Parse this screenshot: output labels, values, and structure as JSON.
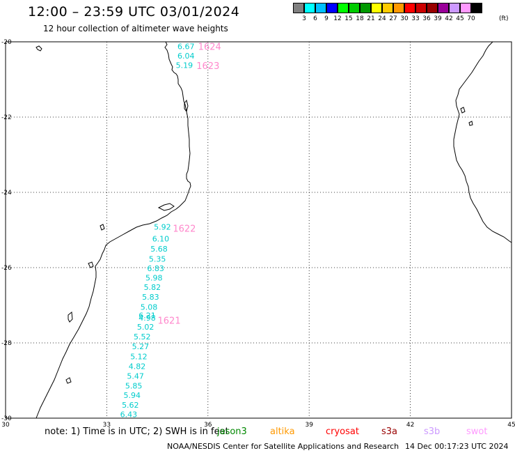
{
  "header": {
    "title": "12:00 – 23:59 UTC 03/01/2024",
    "subtitle": "12 hour collection of altimeter wave heights"
  },
  "legend": {
    "labels": [
      "3",
      "6",
      "9",
      "12",
      "15",
      "18",
      "21",
      "24",
      "27",
      "30",
      "33",
      "36",
      "39",
      "42",
      "45",
      "70"
    ],
    "unit": "(ft)",
    "colors": [
      "#808080",
      "#00ffff",
      "#00bfff",
      "#0000ff",
      "#00ff00",
      "#00cc00",
      "#009900",
      "#ffff00",
      "#ffcc00",
      "#ff9900",
      "#ff0000",
      "#cc0000",
      "#990000",
      "#990099",
      "#cc99ff",
      "#ff99ff",
      "#000000"
    ]
  },
  "map": {
    "lon_range": [
      30,
      45
    ],
    "lat_range": [
      -30,
      -20
    ],
    "lon_labels": [
      "30",
      "33",
      "36",
      "39",
      "42",
      "45"
    ],
    "lat_labels": [
      "-20",
      "-22",
      "-24",
      "-26",
      "-28",
      "-30"
    ],
    "grid": true,
    "track_color": "#00cccc",
    "pass_color": "#ff88cc",
    "wave_heights": [
      {
        "value": "6.67",
        "lon": 35.35,
        "lat": -20.12
      },
      {
        "value": "6.04",
        "lon": 35.35,
        "lat": -20.37
      },
      {
        "value": "5.19",
        "lon": 35.3,
        "lat": -20.62
      },
      {
        "value": "5.92",
        "lon": 34.65,
        "lat": -24.92
      },
      {
        "value": "6.10",
        "lon": 34.6,
        "lat": -25.23
      },
      {
        "value": "5.68",
        "lon": 34.55,
        "lat": -25.5
      },
      {
        "value": "5.35",
        "lon": 34.5,
        "lat": -25.77
      },
      {
        "value": "6.83",
        "lon": 34.45,
        "lat": -26.02
      },
      {
        "value": "5.98",
        "lon": 34.4,
        "lat": -26.27
      },
      {
        "value": "5.82",
        "lon": 34.35,
        "lat": -26.52
      },
      {
        "value": "5.83",
        "lon": 34.3,
        "lat": -26.78
      },
      {
        "value": "5.08",
        "lon": 34.25,
        "lat": -27.05
      },
      {
        "value": "6.21",
        "lon": 34.2,
        "lat": -27.27
      },
      {
        "value": "4.98",
        "lon": 34.2,
        "lat": -27.33
      },
      {
        "value": "5.02",
        "lon": 34.15,
        "lat": -27.57
      },
      {
        "value": "5.52",
        "lon": 34.05,
        "lat": -27.83
      },
      {
        "value": "5.27",
        "lon": 34.0,
        "lat": -28.09
      },
      {
        "value": "5.12",
        "lon": 33.95,
        "lat": -28.36
      },
      {
        "value": "4.82",
        "lon": 33.9,
        "lat": -28.62
      },
      {
        "value": "5.47",
        "lon": 33.85,
        "lat": -28.88
      },
      {
        "value": "5.85",
        "lon": 33.8,
        "lat": -29.14
      },
      {
        "value": "5.94",
        "lon": 33.75,
        "lat": -29.39
      },
      {
        "value": "5.62",
        "lon": 33.7,
        "lat": -29.65
      },
      {
        "value": "6.43",
        "lon": 33.65,
        "lat": -29.9
      }
    ],
    "pass_labels": [
      {
        "value": "1624",
        "lon": 36.05,
        "lat": -20.12
      },
      {
        "value": "1623",
        "lon": 36.0,
        "lat": -20.63
      },
      {
        "value": "1622",
        "lon": 35.3,
        "lat": -24.95
      },
      {
        "value": "1621",
        "lon": 34.85,
        "lat": -27.4
      }
    ]
  },
  "note": {
    "text": "note:  1) Time is in UTC;  2) SWH is in feet",
    "satellites": [
      {
        "name": "jason3",
        "color": "#008800"
      },
      {
        "name": "altika",
        "color": "#ff9900"
      },
      {
        "name": "cryosat",
        "color": "#ff0000"
      },
      {
        "name": "s3a",
        "color": "#990000"
      },
      {
        "name": "s3b",
        "color": "#cc99ff"
      },
      {
        "name": "swot",
        "color": "#ff99ff"
      }
    ]
  },
  "footer": {
    "left": "NOAA/NESDIS Center for Satellite Applications and Research",
    "right": "14 Dec 00:17:23 UTC 2024"
  }
}
